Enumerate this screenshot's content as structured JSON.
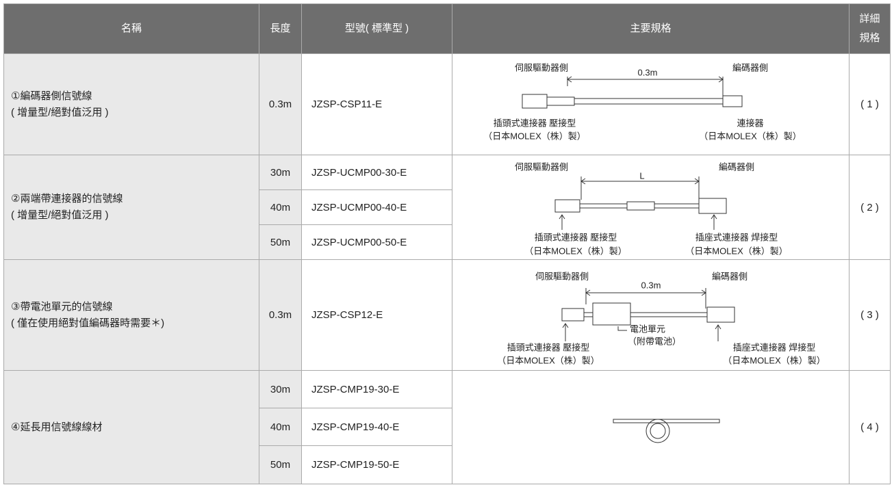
{
  "table": {
    "header": {
      "name": "名稱",
      "length": "長度",
      "model": "型號( 標準型 )",
      "spec": "主要規格",
      "detail": [
        "詳細",
        "規格"
      ]
    },
    "rows": [
      {
        "name": [
          "①編碼器側信號線",
          "( 增量型/絕對值泛用 )"
        ],
        "items": [
          {
            "length": "0.3m",
            "model": "JZSP-CSP11-E"
          }
        ],
        "spec": {
          "left_top": "伺服驅動器側",
          "span": "0.3m",
          "right_top": "編碼器側",
          "left_bottom": [
            "插頭式連接器 壓接型",
            "（日本MOLEX（株）製）"
          ],
          "right_bottom": [
            "連接器",
            "（日本MOLEX（株）製）"
          ]
        },
        "detail": "( 1 )"
      },
      {
        "name": [
          "②兩端帶連接器的信號線",
          "( 增量型/絕對值泛用 )"
        ],
        "items": [
          {
            "length": "30m",
            "model": "JZSP-UCMP00-30-E"
          },
          {
            "length": "40m",
            "model": "JZSP-UCMP00-40-E"
          },
          {
            "length": "50m",
            "model": "JZSP-UCMP00-50-E"
          }
        ],
        "spec": {
          "left_top": "伺服驅動器側",
          "span": "L",
          "right_top": "編碼器側",
          "left_bottom": [
            "插頭式連接器 壓接型",
            "（日本MOLEX（株）製）"
          ],
          "right_bottom": [
            "插座式連接器 焊接型",
            "（日本MOLEX（株）製）"
          ]
        },
        "detail": "( 2 )"
      },
      {
        "name": [
          "③帶電池單元的信號線",
          "( 僅在使用絕對值編碼器時需要＊)"
        ],
        "items": [
          {
            "length": "0.3m",
            "model": "JZSP-CSP12-E"
          }
        ],
        "spec": {
          "left_top": "伺服驅動器側",
          "span": "0.3m",
          "right_top": "編碼器側",
          "middle": [
            "電池單元",
            "（附帶電池）"
          ],
          "left_bottom": [
            "插頭式連接器 壓接型",
            "（日本MOLEX（株）製）"
          ],
          "right_bottom": [
            "插座式連接器 焊接型",
            "（日本MOLEX（株）製）"
          ]
        },
        "detail": "( 3 )"
      },
      {
        "name": [
          "④延長用信號線線材"
        ],
        "items": [
          {
            "length": "30m",
            "model": "JZSP-CMP19-30-E"
          },
          {
            "length": "40m",
            "model": "JZSP-CMP19-40-E"
          },
          {
            "length": "50m",
            "model": "JZSP-CMP19-50-E"
          }
        ],
        "detail": "( 4 )"
      }
    ]
  }
}
